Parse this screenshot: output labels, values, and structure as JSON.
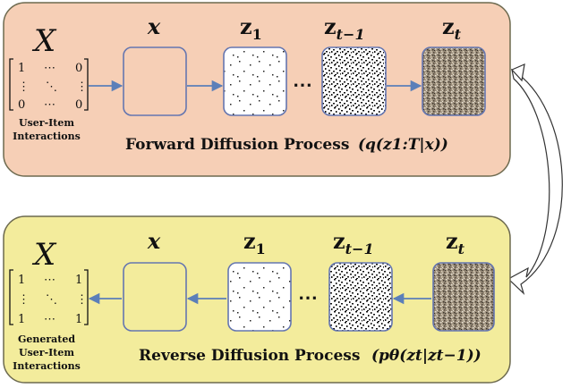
{
  "colors": {
    "forward_panel": "#f6cfb6",
    "reverse_panel": "#f3ec9c",
    "panel_border": "#6d6a4f",
    "box_border": "#6576b0",
    "arrow": "#5b7fb9"
  },
  "forward": {
    "matrix_symbol": "X",
    "matrix": {
      "r1": [
        "1",
        "⋯",
        "0"
      ],
      "r2": [
        "⋮",
        "⋱",
        "⋮"
      ],
      "r3": [
        "0",
        "⋯",
        "0"
      ]
    },
    "caption_l1": "User-Item",
    "caption_l2": "Interactions",
    "labels": {
      "x": "x",
      "z1_base": "z",
      "z1_sub": "1",
      "zt1_base": "z",
      "zt1_sub": "t−1",
      "zt_base": "z",
      "zt_sub": "t"
    },
    "ellipsis": "⋯",
    "title": "Forward Diffusion Process",
    "formula": "(q(z1:T|x))"
  },
  "reverse": {
    "matrix_symbol": "X",
    "matrix": {
      "r1": [
        "1",
        "⋯",
        "1"
      ],
      "r2": [
        "⋮",
        "⋱",
        "⋮"
      ],
      "r3": [
        "1",
        "⋯",
        "1"
      ]
    },
    "caption_l1": "Generated",
    "caption_l2": "User-Item",
    "caption_l3": "Interactions",
    "labels": {
      "x": "x",
      "z1_base": "z",
      "z1_sub": "1",
      "zt1_base": "z",
      "zt1_sub": "t−1",
      "zt_base": "z",
      "zt_sub": "t"
    },
    "ellipsis": "⋯",
    "title": "Reverse Diffusion Process",
    "formula": "(pθ(zt|zt−1))"
  }
}
